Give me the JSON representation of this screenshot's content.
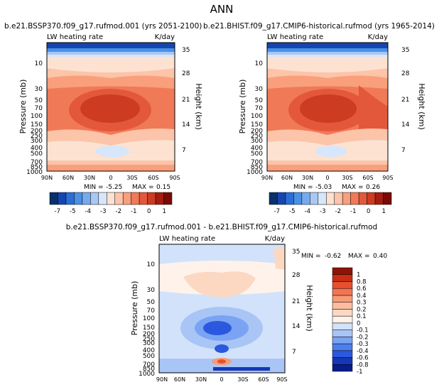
{
  "figure": {
    "title": "ANN"
  },
  "palettes": {
    "top": [
      "#08306b",
      "#1546b0",
      "#2a6ed6",
      "#4a90e6",
      "#75aaee",
      "#a9c8f3",
      "#d6e6fb",
      "#fde2d2",
      "#fcc4a9",
      "#f99f7c",
      "#f07a57",
      "#e3583a",
      "#cc3b22",
      "#a51d10",
      "#7a0a04"
    ],
    "diff": [
      "#081d8a",
      "#1537b8",
      "#2a58de",
      "#4b7ff0",
      "#7aa3f3",
      "#a9c5f6",
      "#d2e2fa",
      "#fff2ea",
      "#fcd8c3",
      "#fbbd9d",
      "#f79a76",
      "#f27552",
      "#e6502f",
      "#c82e14",
      "#8e1305"
    ]
  },
  "chart_data": [
    {
      "type": "heatmap",
      "id": "panel_a",
      "title": "b.e21.BSSP370.f09_g17.rufmod.001 (yrs 2051-2100)",
      "left_label": "LW heating rate",
      "right_label": "K/day",
      "xlabel": "",
      "ylabel": "Pressure (mb)",
      "ylabel_right": "Height (km)",
      "x_ticks": [
        "90N",
        "60N",
        "30N",
        "0",
        "30S",
        "60S",
        "90S"
      ],
      "y_ticks": [
        "10",
        "30",
        "50",
        "70",
        "100",
        "150",
        "200",
        "250",
        "300",
        "400",
        "500",
        "700",
        "850",
        "1000"
      ],
      "y2_ticks": [
        "35",
        "28",
        "21",
        "14",
        "7"
      ],
      "ylim": [
        1000,
        3.5
      ],
      "y_scale": "log",
      "min_label": "MIN =",
      "min_value": "-5.25",
      "max_label": "MAX =",
      "max_value": "0.15",
      "colorbar": {
        "levels": [
          "-7",
          "-5",
          "-4",
          "-3",
          "-2",
          "-1",
          "0",
          "1"
        ]
      }
    },
    {
      "type": "heatmap",
      "id": "panel_b",
      "title": "b.e21.BHIST.f09_g17.CMIP6-historical.rufmod (yrs 1965-2014)",
      "left_label": "LW heating rate",
      "right_label": "K/day",
      "xlabel": "",
      "ylabel": "Pressure (mb)",
      "ylabel_right": "Height (km)",
      "x_ticks": [
        "90N",
        "60N",
        "30N",
        "0",
        "30S",
        "60S",
        "90S"
      ],
      "y_ticks": [
        "10",
        "30",
        "50",
        "70",
        "100",
        "150",
        "200",
        "250",
        "300",
        "400",
        "500",
        "700",
        "850",
        "1000"
      ],
      "y2_ticks": [
        "35",
        "28",
        "21",
        "14",
        "7"
      ],
      "ylim": [
        1000,
        3.5
      ],
      "y_scale": "log",
      "min_label": "MIN =",
      "min_value": "-5.03",
      "max_label": "MAX =",
      "max_value": "0.26",
      "colorbar": {
        "levels": [
          "-7",
          "-5",
          "-4",
          "-3",
          "-2",
          "-1",
          "0",
          "1"
        ]
      }
    },
    {
      "type": "heatmap",
      "id": "panel_diff",
      "title": "b.e21.BSSP370.f09_g17.rufmod.001 - b.e21.BHIST.f09_g17.CMIP6-historical.rufmod",
      "left_label": "LW heating rate",
      "right_label": "K/day",
      "xlabel": "",
      "ylabel": "Pressure (mb)",
      "ylabel_right": "Height (km)",
      "x_ticks": [
        "90N",
        "60N",
        "30N",
        "0",
        "30S",
        "60S",
        "90S"
      ],
      "y_ticks": [
        "10",
        "30",
        "50",
        "70",
        "100",
        "150",
        "200",
        "250",
        "300",
        "400",
        "500",
        "700",
        "850",
        "1000"
      ],
      "y2_ticks": [
        "35",
        "28",
        "21",
        "14",
        "7"
      ],
      "ylim": [
        1000,
        3.5
      ],
      "y_scale": "log",
      "min_label": "MIN =",
      "min_value": "-0.62",
      "max_label": "MAX =",
      "max_value": "0.40",
      "colorbar": {
        "levels": [
          "1",
          "0.8",
          "0.6",
          "0.4",
          "0.3",
          "0.2",
          "0.1",
          "0",
          "-0.1",
          "-0.2",
          "-0.3",
          "-0.4",
          "-0.6",
          "-0.8",
          "-1"
        ]
      }
    }
  ]
}
